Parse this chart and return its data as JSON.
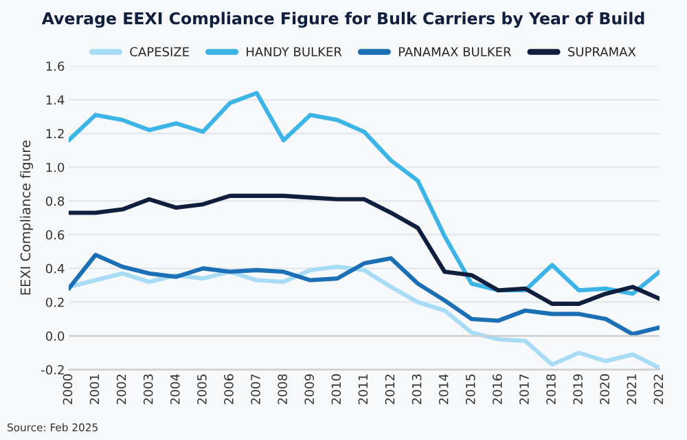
{
  "chart_data": {
    "type": "line",
    "title": "Average EEXI Compliance Figure for Bulk Carriers by Year of Build",
    "ylabel": "EEXI Compliance figure",
    "categories": [
      "2000",
      "2001",
      "2002",
      "2003",
      "2004",
      "2005",
      "2006",
      "2007",
      "2008",
      "2009",
      "2010",
      "2011",
      "2012",
      "2013",
      "2014",
      "2015",
      "2016",
      "2017",
      "2018",
      "2019",
      "2020",
      "2021",
      "2022"
    ],
    "series": [
      {
        "name": "CAPESIZE",
        "color": "#a8dcf5",
        "values": [
          0.29,
          0.33,
          0.37,
          0.32,
          0.36,
          0.34,
          0.38,
          0.33,
          0.32,
          0.39,
          0.41,
          0.39,
          0.29,
          0.2,
          0.15,
          0.02,
          -0.02,
          -0.03,
          -0.17,
          -0.1,
          -0.15,
          -0.11,
          -0.19
        ]
      },
      {
        "name": "HANDY BULKER",
        "color": "#3cb4e6",
        "values": [
          1.16,
          1.31,
          1.28,
          1.22,
          1.26,
          1.21,
          1.38,
          1.44,
          1.16,
          1.31,
          1.28,
          1.21,
          1.04,
          0.92,
          0.59,
          0.31,
          0.27,
          0.27,
          0.42,
          0.27,
          0.28,
          0.25,
          0.38
        ]
      },
      {
        "name": "PANAMAX BULKER",
        "color": "#1b6fb5",
        "values": [
          0.28,
          0.48,
          0.41,
          0.37,
          0.35,
          0.4,
          0.38,
          0.39,
          0.38,
          0.33,
          0.34,
          0.43,
          0.46,
          0.31,
          0.21,
          0.1,
          0.09,
          0.15,
          0.13,
          0.13,
          0.1,
          0.01,
          0.05
        ]
      },
      {
        "name": "SUPRAMAX",
        "color": "#0f1f3d",
        "values": [
          0.73,
          0.73,
          0.75,
          0.81,
          0.76,
          0.78,
          0.83,
          0.83,
          0.83,
          0.82,
          0.81,
          0.81,
          0.73,
          0.64,
          0.38,
          0.36,
          0.27,
          0.28,
          0.19,
          0.19,
          0.25,
          0.29,
          0.22
        ]
      }
    ],
    "ylim": [
      -0.2,
      1.6
    ],
    "yticks": [
      {
        "value": -0.2,
        "label": "-0.2"
      },
      {
        "value": 0.0,
        "label": "0.0"
      },
      {
        "value": 0.2,
        "label": "0.2"
      },
      {
        "value": 0.4,
        "label": "0.4"
      },
      {
        "value": 0.6,
        "label": "0.6"
      },
      {
        "value": 0.8,
        "label": "0.8"
      },
      {
        "value": 1.0,
        "label": "1.0"
      },
      {
        "value": 1.2,
        "label": "1.2"
      },
      {
        "value": 1.4,
        "label": "1.4"
      },
      {
        "value": 1.6,
        "label": "1.6"
      }
    ],
    "grid": "y",
    "legend": "top",
    "marker": "none",
    "line_style": "solid",
    "annotations": [
      "Source: Feb 2025"
    ]
  }
}
